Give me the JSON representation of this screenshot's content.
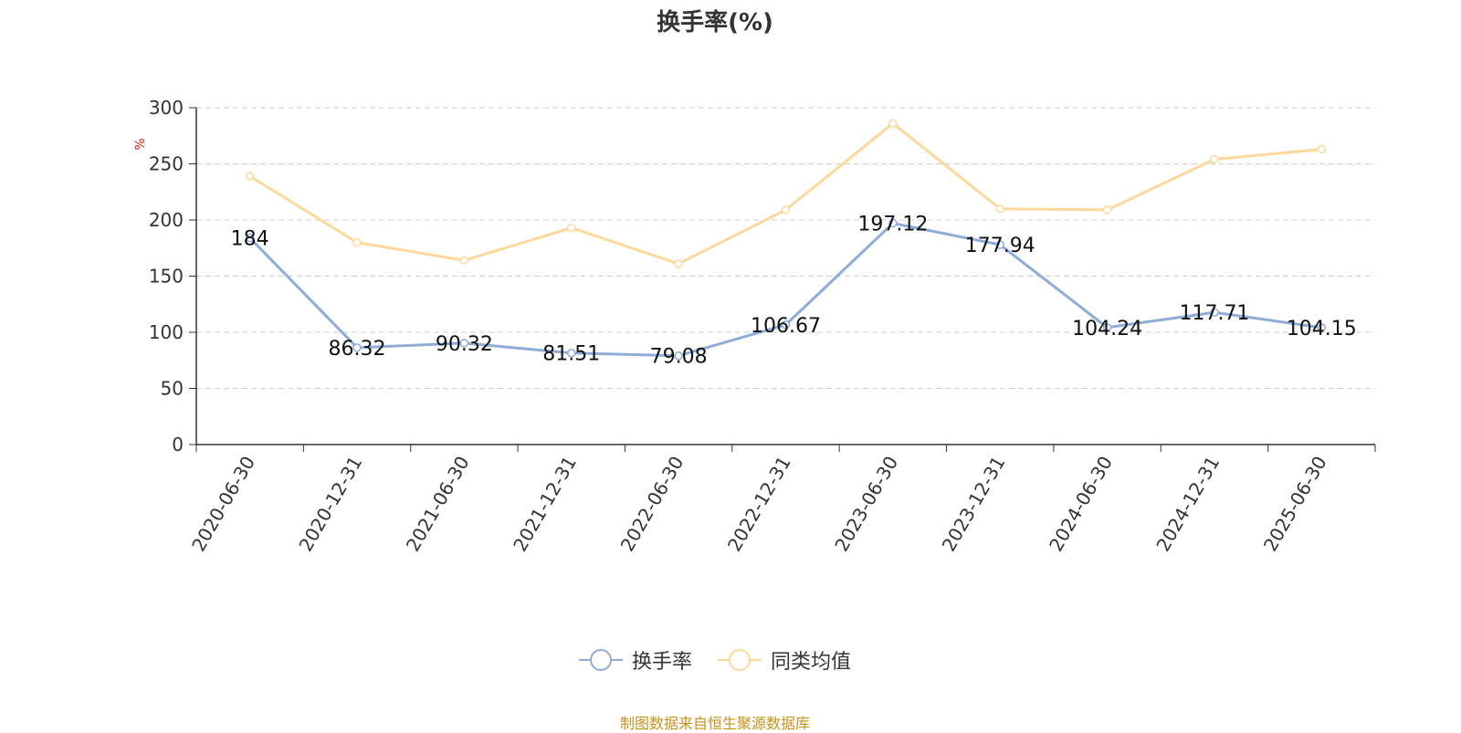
{
  "chart_data": {
    "type": "line",
    "title": "换手率(%)",
    "ylabel": "%",
    "ylim": [
      0,
      300
    ],
    "yticks": [
      0,
      50,
      100,
      150,
      200,
      250,
      300
    ],
    "grid": true,
    "legend_position": "bottom-center",
    "categories": [
      "2020-06-30",
      "2020-12-31",
      "2021-06-30",
      "2021-12-31",
      "2022-06-30",
      "2022-12-31",
      "2023-06-30",
      "2023-12-31",
      "2024-06-30",
      "2024-12-31",
      "2025-06-30"
    ],
    "series": [
      {
        "name": "换手率",
        "color": "#8eacd8",
        "values": [
          184,
          86.32,
          90.32,
          81.51,
          79.08,
          106.67,
          197.12,
          177.94,
          104.24,
          117.71,
          104.15
        ],
        "data_labels": [
          "184",
          "86.32",
          "90.32",
          "81.51",
          "79.08",
          "106.67",
          "197.12",
          "177.94",
          "104.24",
          "117.71",
          "104.15"
        ]
      },
      {
        "name": "同类均值",
        "color": "#fcd99a",
        "values": [
          239,
          180,
          164,
          193,
          161,
          209,
          286,
          210,
          209,
          254,
          263
        ]
      }
    ]
  },
  "source_note": "制图数据来自恒生聚源数据库"
}
